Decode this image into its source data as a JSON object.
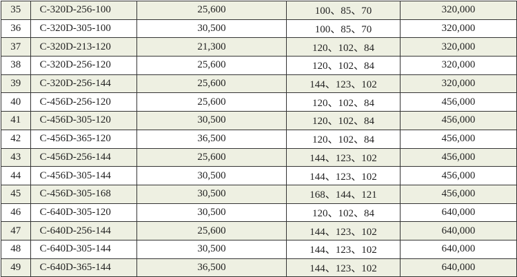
{
  "colors": {
    "shaded_row": "#eef0e2",
    "border": "#333333"
  },
  "rows": [
    {
      "no": "35",
      "model": "C-320D-256-100",
      "width": "25,600",
      "sizes": "100、85、70",
      "price": "320,000"
    },
    {
      "no": "36",
      "model": "C-320D-305-100",
      "width": "30,500",
      "sizes": "100、85、70",
      "price": "320,000"
    },
    {
      "no": "37",
      "model": "C-320D-213-120",
      "width": "21,300",
      "sizes": "120、102、84",
      "price": "320,000"
    },
    {
      "no": "38",
      "model": "C-320D-256-120",
      "width": "25,600",
      "sizes": "120、102、84",
      "price": "320,000"
    },
    {
      "no": "39",
      "model": "C-320D-256-144",
      "width": "25,600",
      "sizes": "144、123、102",
      "price": "320,000"
    },
    {
      "no": "40",
      "model": "C-456D-256-120",
      "width": "25,600",
      "sizes": "120、102、84",
      "price": "456,000"
    },
    {
      "no": "41",
      "model": "C-456D-305-120",
      "width": "30,500",
      "sizes": "120、102、84",
      "price": "456,000"
    },
    {
      "no": "42",
      "model": "C-456D-365-120",
      "width": "36,500",
      "sizes": "120、102、84",
      "price": "456,000"
    },
    {
      "no": "43",
      "model": "C-456D-256-144",
      "width": "25,600",
      "sizes": "144、123、102",
      "price": "456,000"
    },
    {
      "no": "44",
      "model": "C-456D-305-144",
      "width": "30,500",
      "sizes": "144、123、102",
      "price": "456,000"
    },
    {
      "no": "45",
      "model": "C-456D-305-168",
      "width": "30,500",
      "sizes": "168、144、121",
      "price": "456,000"
    },
    {
      "no": "46",
      "model": "C-640D-305-120",
      "width": "30,500",
      "sizes": "120、102、84",
      "price": "640,000"
    },
    {
      "no": "47",
      "model": "C-640D-256-144",
      "width": "25,600",
      "sizes": "144、123、102",
      "price": "640,000"
    },
    {
      "no": "48",
      "model": "C-640D-305-144",
      "width": "30,500",
      "sizes": "144、123、102",
      "price": "640,000"
    },
    {
      "no": "49",
      "model": "C-640D-365-144",
      "width": "36,500",
      "sizes": "144、123、102",
      "price": "640,000"
    }
  ]
}
